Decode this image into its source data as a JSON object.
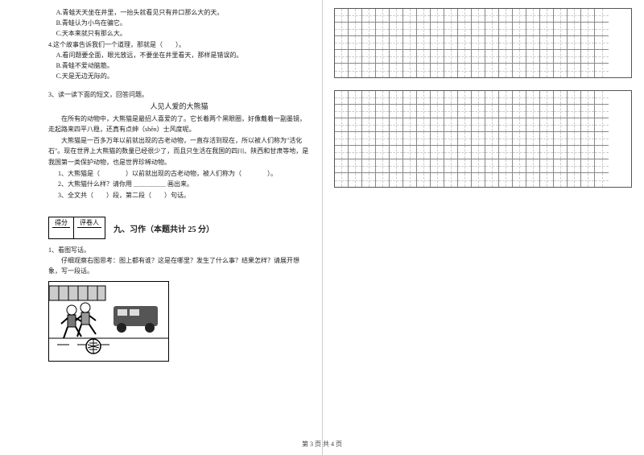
{
  "q2": {
    "optA": "A.青蛙天天坐在井里，一抬头就看见只有井口那么大的天。",
    "optB": "B.青蛙认为小鸟在骗它。",
    "optC": "C.天本来就只有那么大。",
    "q4": "4.这个故事告诉我们一个道理，那就是（　　）。",
    "q4A": "A.看问题要全面，眼光放远，不要坐在井里看天，那样是错误的。",
    "q4B": "B.青蛙不爱动脑筋。",
    "q4C": "C.天是无边无际的。"
  },
  "q3": {
    "lead": "3、读一读下面的短文，回答问题。",
    "title": "人见人爱的大熊猫",
    "p1": "在所有的动物中，大熊猫是最招人喜爱的了。它长着两个黑眼圈，好像戴着一副墨镜，走起路来四平八稳，还真有点绅（shēn）士风度呢。",
    "p2": "大熊猫是一百多万年以前就出现的古老动物，一直存活到现在，所以被人们称为\"活化石\"。现在世界上大熊猫的数量已经很少了，而且只生活在我国的四川、陕西和甘肃等地，是我国第一类保护动物，也是世界珍稀动物。",
    "s1": "1、大熊猫是（　　　　）以前就出现的古老动物，被人们称为（　　　　）。",
    "s2": "2、大熊猫什么样？请你用 ＿＿＿＿＿ 画出来。",
    "s3": "3、全文共（　　）段，第二段（　　）句话。"
  },
  "score": {
    "label1": "得分",
    "label2": "评卷人"
  },
  "section9": {
    "title": "九、习作（本题共计 25 分）",
    "q1": "1、看图写话。",
    "hint": "仔细观察右图思考：图上都有谁？这是在哪里？发生了什么事？结果怎样？请展开想象，写一段话。"
  },
  "footer": "第 3 页 共 4 页",
  "grid": {
    "cols": 20,
    "rows1": 5,
    "rows2": 7
  }
}
